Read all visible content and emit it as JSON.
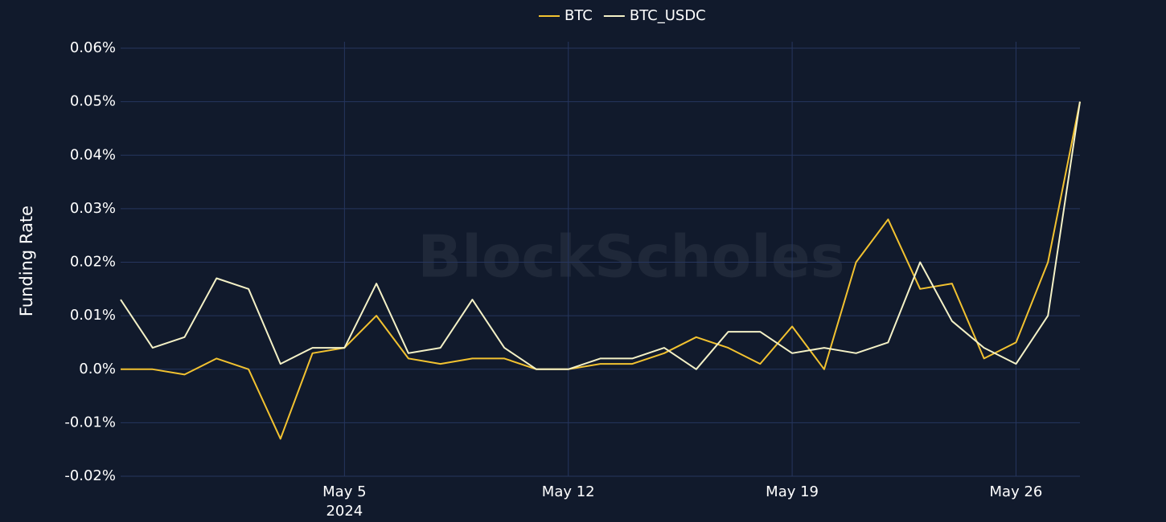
{
  "chart_data": {
    "type": "line",
    "watermark": "BlockScholes",
    "y_label": "Funding Rate",
    "x_year_label": "2024",
    "x": [
      "2024-04-28",
      "2024-04-29",
      "2024-04-30",
      "2024-05-01",
      "2024-05-02",
      "2024-05-03",
      "2024-05-04",
      "2024-05-05",
      "2024-05-06",
      "2024-05-07",
      "2024-05-08",
      "2024-05-09",
      "2024-05-10",
      "2024-05-11",
      "2024-05-12",
      "2024-05-13",
      "2024-05-14",
      "2024-05-15",
      "2024-05-16",
      "2024-05-17",
      "2024-05-18",
      "2024-05-19",
      "2024-05-20",
      "2024-05-21",
      "2024-05-22",
      "2024-05-23",
      "2024-05-24",
      "2024-05-25",
      "2024-05-26",
      "2024-05-27",
      "2024-05-28"
    ],
    "series": [
      {
        "name": "BTC",
        "color": "#f2c230",
        "values": [
          0.0,
          0.0,
          -0.001,
          0.002,
          0.0,
          -0.013,
          0.003,
          0.004,
          0.01,
          0.002,
          0.001,
          0.002,
          0.002,
          0.0,
          0.0,
          0.001,
          0.001,
          0.003,
          0.006,
          0.004,
          0.001,
          0.008,
          0.0,
          0.02,
          0.028,
          0.015,
          0.016,
          0.002,
          0.005,
          0.02,
          0.05
        ]
      },
      {
        "name": "BTC_USDC",
        "color": "#f4f1c6",
        "values": [
          0.013,
          0.004,
          0.006,
          0.017,
          0.015,
          0.001,
          0.004,
          0.004,
          0.016,
          0.003,
          0.004,
          0.013,
          0.004,
          0.0,
          0.0,
          0.002,
          0.002,
          0.004,
          0.0,
          0.007,
          0.007,
          0.003,
          0.004,
          0.003,
          0.005,
          0.02,
          0.009,
          0.004,
          0.001,
          0.01,
          0.05
        ]
      }
    ],
    "xlim": [
      "2024-04-28",
      "2024-05-28"
    ],
    "xticks": [
      {
        "value": "2024-05-05",
        "label": "May 5"
      },
      {
        "value": "2024-05-12",
        "label": "May 12"
      },
      {
        "value": "2024-05-19",
        "label": "May 19"
      },
      {
        "value": "2024-05-26",
        "label": "May 26"
      }
    ],
    "ylim": [
      -0.02,
      0.06
    ],
    "yticks": [
      {
        "value": -0.02,
        "label": "-0.02%"
      },
      {
        "value": -0.01,
        "label": "-0.01%"
      },
      {
        "value": 0,
        "label": "0.0%"
      },
      {
        "value": 0.01,
        "label": "0.01%"
      },
      {
        "value": 0.02,
        "label": "0.02%"
      },
      {
        "value": 0.03,
        "label": "0.03%"
      },
      {
        "value": 0.04,
        "label": "0.04%"
      },
      {
        "value": 0.05,
        "label": "0.05%"
      },
      {
        "value": 0.06,
        "label": "0.06%"
      }
    ],
    "grid": true
  }
}
